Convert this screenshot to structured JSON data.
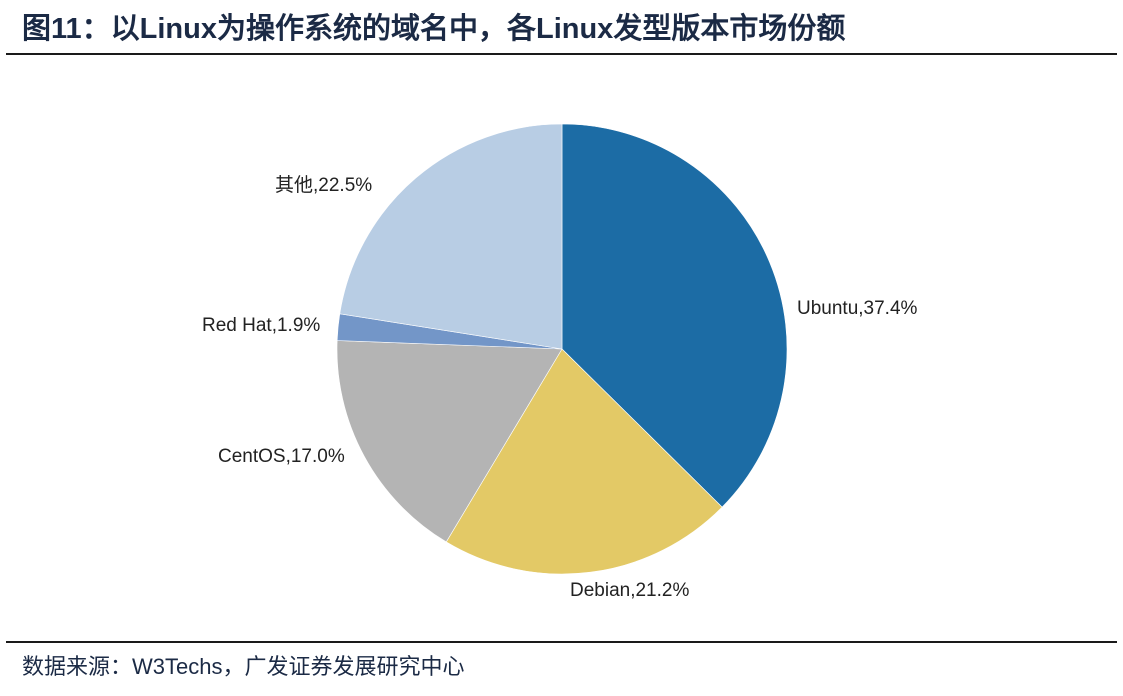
{
  "header": {
    "title": "图11：以Linux为操作系统的域名中，各Linux发型版本市场份额"
  },
  "footer": {
    "source": "数据来源：W3Techs，广发证券发展研究中心"
  },
  "chart_data": {
    "type": "pie",
    "title": "以Linux为操作系统的域名中，各Linux发型版本市场份额",
    "start_angle": "12 o'clock",
    "direction": "clockwise",
    "categories": [
      "Ubuntu",
      "Debian",
      "CentOS",
      "Red Hat",
      "其他"
    ],
    "values": [
      37.4,
      21.2,
      17.0,
      1.9,
      22.5
    ],
    "unit": "%",
    "colors": [
      "#1c6ca5",
      "#e3c966",
      "#b4b4b4",
      "#7396c8",
      "#b8cde4"
    ],
    "labels": [
      "Ubuntu,37.4%",
      "Debian,21.2%",
      "CentOS,17.0%",
      "Red Hat,1.9%",
      "其他,22.5%"
    ],
    "legend": "none (data labels outside slices)"
  }
}
